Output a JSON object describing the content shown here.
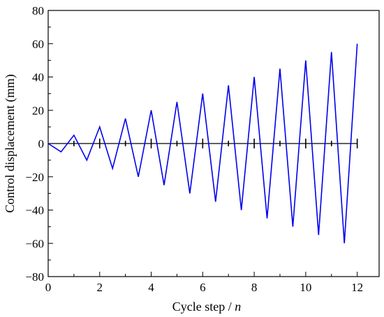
{
  "chart_data": {
    "type": "line",
    "title": "",
    "xlabel": "Cycle step / ",
    "xlabel_var": "n",
    "ylabel": "Control displacement (mm)",
    "xlim": [
      0,
      12.85
    ],
    "ylim": [
      -80,
      80
    ],
    "x_ticks": [
      0,
      2,
      4,
      6,
      8,
      10,
      12
    ],
    "x_tick_labels": [
      "0",
      "2",
      "4",
      "6",
      "8",
      "10",
      "12"
    ],
    "y_ticks": [
      -80,
      -60,
      -40,
      -20,
      0,
      20,
      40,
      60,
      80
    ],
    "y_tick_labels": [
      "−80",
      "−60",
      "−40",
      "−20",
      "0",
      "20",
      "40",
      "60",
      "80"
    ],
    "grid": false,
    "series": [
      {
        "color": "#0000ee",
        "x": [
          0,
          0.5,
          1,
          1.5,
          2,
          2.5,
          3,
          3.5,
          4,
          4.5,
          5,
          5.5,
          6,
          6.5,
          7,
          7.5,
          8,
          8.5,
          9,
          9.5,
          10,
          10.5,
          11,
          11.5,
          12
        ],
        "y": [
          0,
          -5,
          5,
          -10,
          10,
          -15,
          15,
          -20,
          20,
          -25,
          25,
          -30,
          30,
          -35,
          35,
          -40,
          40,
          -45,
          45,
          -50,
          50,
          -55,
          55,
          -60,
          60
        ]
      }
    ],
    "zero_line_ticks": [
      1,
      2,
      3,
      4,
      5,
      6,
      7,
      8,
      9,
      10,
      11,
      12
    ]
  }
}
